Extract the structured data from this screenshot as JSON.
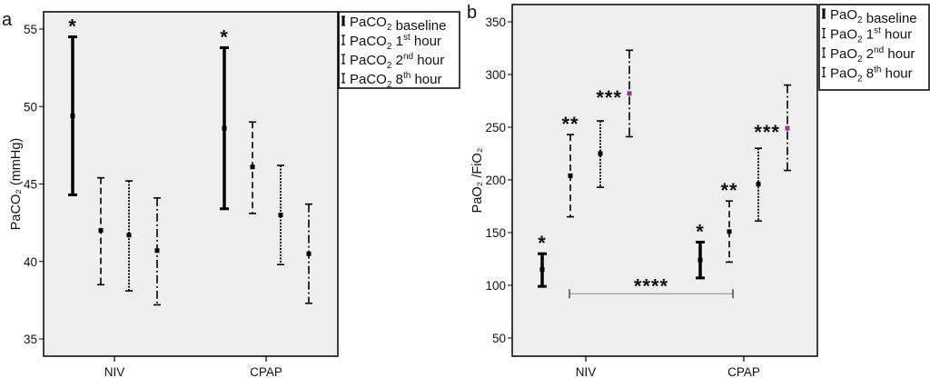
{
  "chart_data": [
    {
      "type": "errorbar",
      "panel_label": "a",
      "ylabel": "PaCO₂ (mmHg)",
      "ylim": [
        33.9,
        56.2
      ],
      "yticks": [
        35,
        40,
        45,
        50,
        55
      ],
      "categories": [
        "NIV",
        "CPAP"
      ],
      "grid": false,
      "legend_position": "outside-top-right",
      "background": "#efefef",
      "series": [
        {
          "name": "baseline",
          "style": "solid-thick",
          "color": "#000000",
          "mean": [
            49.4,
            48.6
          ],
          "lower": [
            44.3,
            43.4
          ],
          "upper": [
            54.5,
            53.8
          ]
        },
        {
          "name": "1st hour",
          "style": "dashed",
          "color": "#000000",
          "mean": [
            42.0,
            46.1
          ],
          "lower": [
            38.5,
            43.1
          ],
          "upper": [
            45.4,
            49.0
          ]
        },
        {
          "name": "2nd hour",
          "style": "dotted",
          "color": "#000000",
          "mean": [
            41.7,
            43.0
          ],
          "lower": [
            38.1,
            39.8
          ],
          "upper": [
            45.2,
            46.2
          ]
        },
        {
          "name": "8th hour",
          "style": "dash-dot",
          "color": "#000000",
          "mean": [
            40.7,
            40.5
          ],
          "lower": [
            37.2,
            37.3
          ],
          "upper": [
            44.1,
            43.7
          ]
        }
      ],
      "legend": [
        {
          "prefix": "PaCO",
          "sub": "2",
          "num": "",
          "sup": "",
          "rest": " baseline"
        },
        {
          "prefix": "PaCO",
          "sub": "2",
          "num": " 1",
          "sup": "st",
          "rest": " hour"
        },
        {
          "prefix": "PaCO",
          "sub": "2",
          "num": " 2",
          "sup": "nd",
          "rest": " hour"
        },
        {
          "prefix": "PaCO",
          "sub": "2",
          "num": " 8",
          "sup": "th",
          "rest": " hour"
        }
      ],
      "annotations": [
        {
          "text": "*",
          "series": 0,
          "category": 0,
          "position": "above"
        },
        {
          "text": "*",
          "series": 0,
          "category": 1,
          "position": "above"
        }
      ]
    },
    {
      "type": "errorbar",
      "panel_label": "b",
      "ylabel": "PaO₂ /FiO₂",
      "ylim": [
        32,
        366
      ],
      "yticks": [
        50,
        100,
        150,
        200,
        250,
        300,
        350
      ],
      "categories": [
        "NIV",
        "CPAP"
      ],
      "grid": false,
      "legend_position": "outside-top-right",
      "background": "#efefef",
      "series": [
        {
          "name": "baseline",
          "style": "solid-thick",
          "color": "#000000",
          "mean": [
            115,
            124
          ],
          "lower": [
            99,
            107
          ],
          "upper": [
            130,
            141
          ]
        },
        {
          "name": "1st hour",
          "style": "dashed",
          "color": "#000000",
          "mean": [
            204,
            151
          ],
          "lower": [
            165,
            122
          ],
          "upper": [
            243,
            180
          ]
        },
        {
          "name": "2nd hour",
          "style": "dotted",
          "color": "#000000",
          "mean": [
            225,
            196
          ],
          "lower": [
            193,
            161
          ],
          "upper": [
            256,
            230
          ]
        },
        {
          "name": "8th hour",
          "style": "dash-dot",
          "color": "#000000",
          "marker_color": "#8a3a8a",
          "mean": [
            282,
            249
          ],
          "lower": [
            241,
            209
          ],
          "upper": [
            323,
            290
          ]
        }
      ],
      "legend": [
        {
          "prefix": "PaO",
          "sub": "2",
          "num": "",
          "sup": "",
          "rest": " baseline"
        },
        {
          "prefix": "PaO",
          "sub": "2",
          "num": " 1",
          "sup": "st",
          "rest": " hour"
        },
        {
          "prefix": "PaO",
          "sub": "2",
          "num": " 2",
          "sup": "nd",
          "rest": " hour"
        },
        {
          "prefix": "PaO",
          "sub": "2",
          "num": " 8",
          "sup": "th",
          "rest": " hour"
        }
      ],
      "annotations": [
        {
          "text": "*",
          "series": 0,
          "category": 0,
          "position": "above"
        },
        {
          "text": "**",
          "series": 1,
          "category": 0,
          "position": "above"
        },
        {
          "text": "***",
          "series": 3,
          "category": 0,
          "position": "left"
        },
        {
          "text": "*",
          "series": 0,
          "category": 1,
          "position": "above"
        },
        {
          "text": "**",
          "series": 1,
          "category": 1,
          "position": "above"
        },
        {
          "text": "***",
          "series": 3,
          "category": 1,
          "position": "left"
        }
      ],
      "bracket": {
        "text": "****",
        "from": {
          "series": 1,
          "category": 0
        },
        "to": {
          "series": 1,
          "category": 1
        },
        "y": 92,
        "color": "#888888"
      }
    }
  ]
}
